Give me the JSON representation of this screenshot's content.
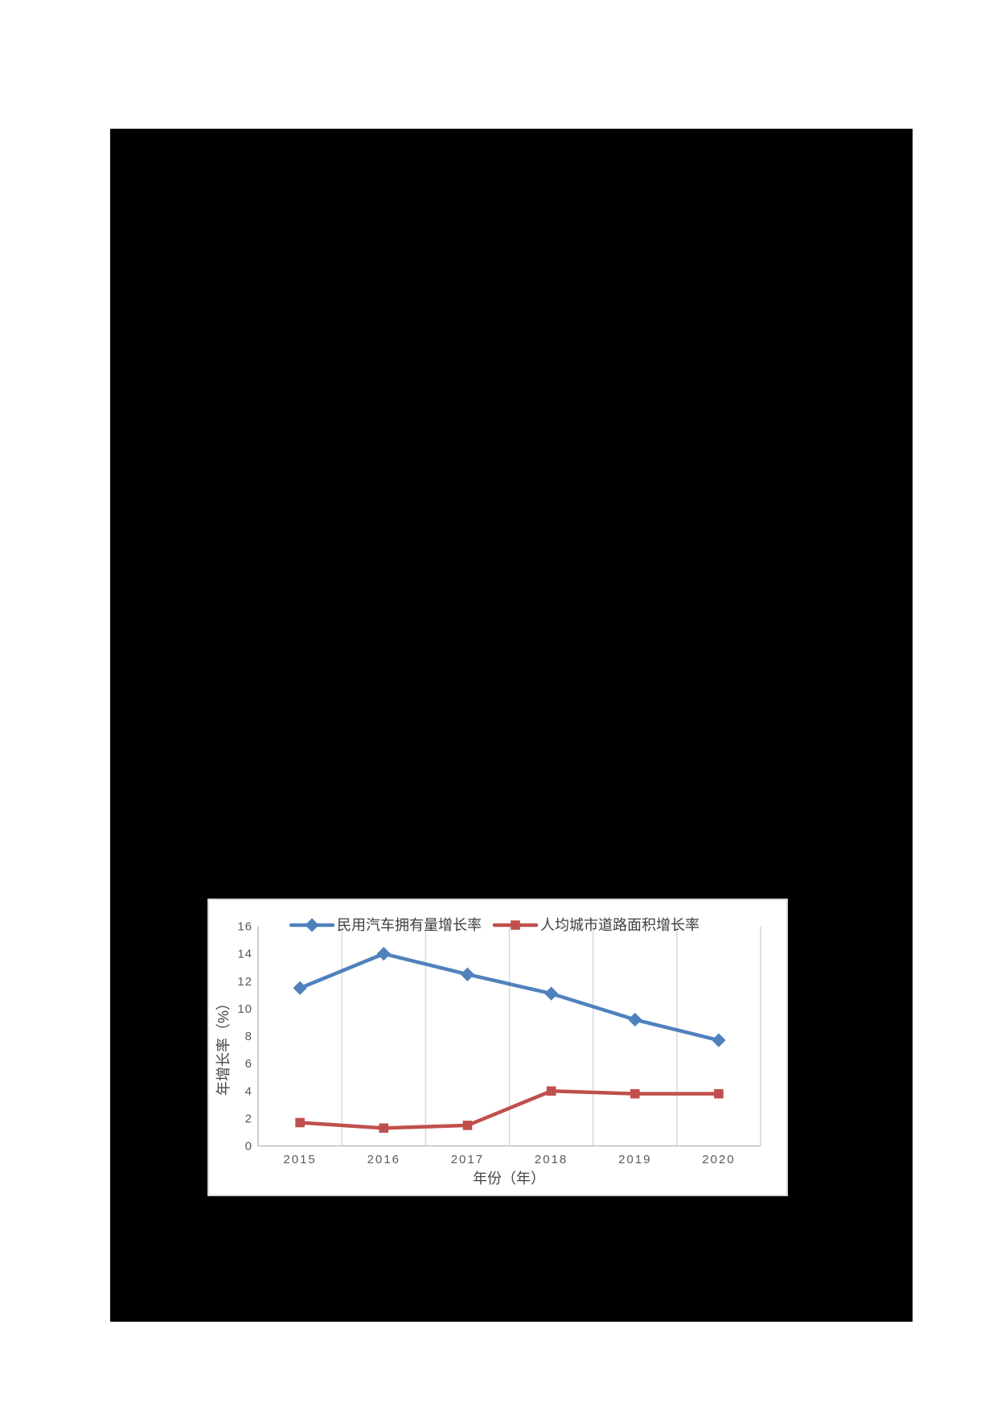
{
  "page": {
    "background_color": "#ffffff",
    "black_panel_color": "#000000"
  },
  "chart_data": {
    "type": "line",
    "categories": [
      "2015",
      "2016",
      "2017",
      "2018",
      "2019",
      "2020"
    ],
    "series": [
      {
        "name": "民用汽车拥有量增长率",
        "color": "#4F81BD",
        "marker": "diamond",
        "values": [
          11.5,
          14.0,
          12.5,
          11.1,
          9.2,
          7.7
        ]
      },
      {
        "name": "人均城市道路面积增长率",
        "color": "#C0504D",
        "marker": "square",
        "values": [
          1.7,
          1.3,
          1.5,
          4.0,
          3.8,
          3.8
        ]
      }
    ],
    "xlabel": "年份（年）",
    "ylabel": "年增长率（%）",
    "ylim": [
      0,
      16
    ],
    "ytick_step": 2,
    "grid": "vertical-only",
    "legend_position": "top-inside",
    "colors": {
      "gridline": "#D9D9D9",
      "axis_line": "#BFBFBF",
      "tick_label": "#595959",
      "title_text": "#444444",
      "legend_text": "#3F3F3F",
      "panel_border": "#D9D9D9"
    }
  }
}
